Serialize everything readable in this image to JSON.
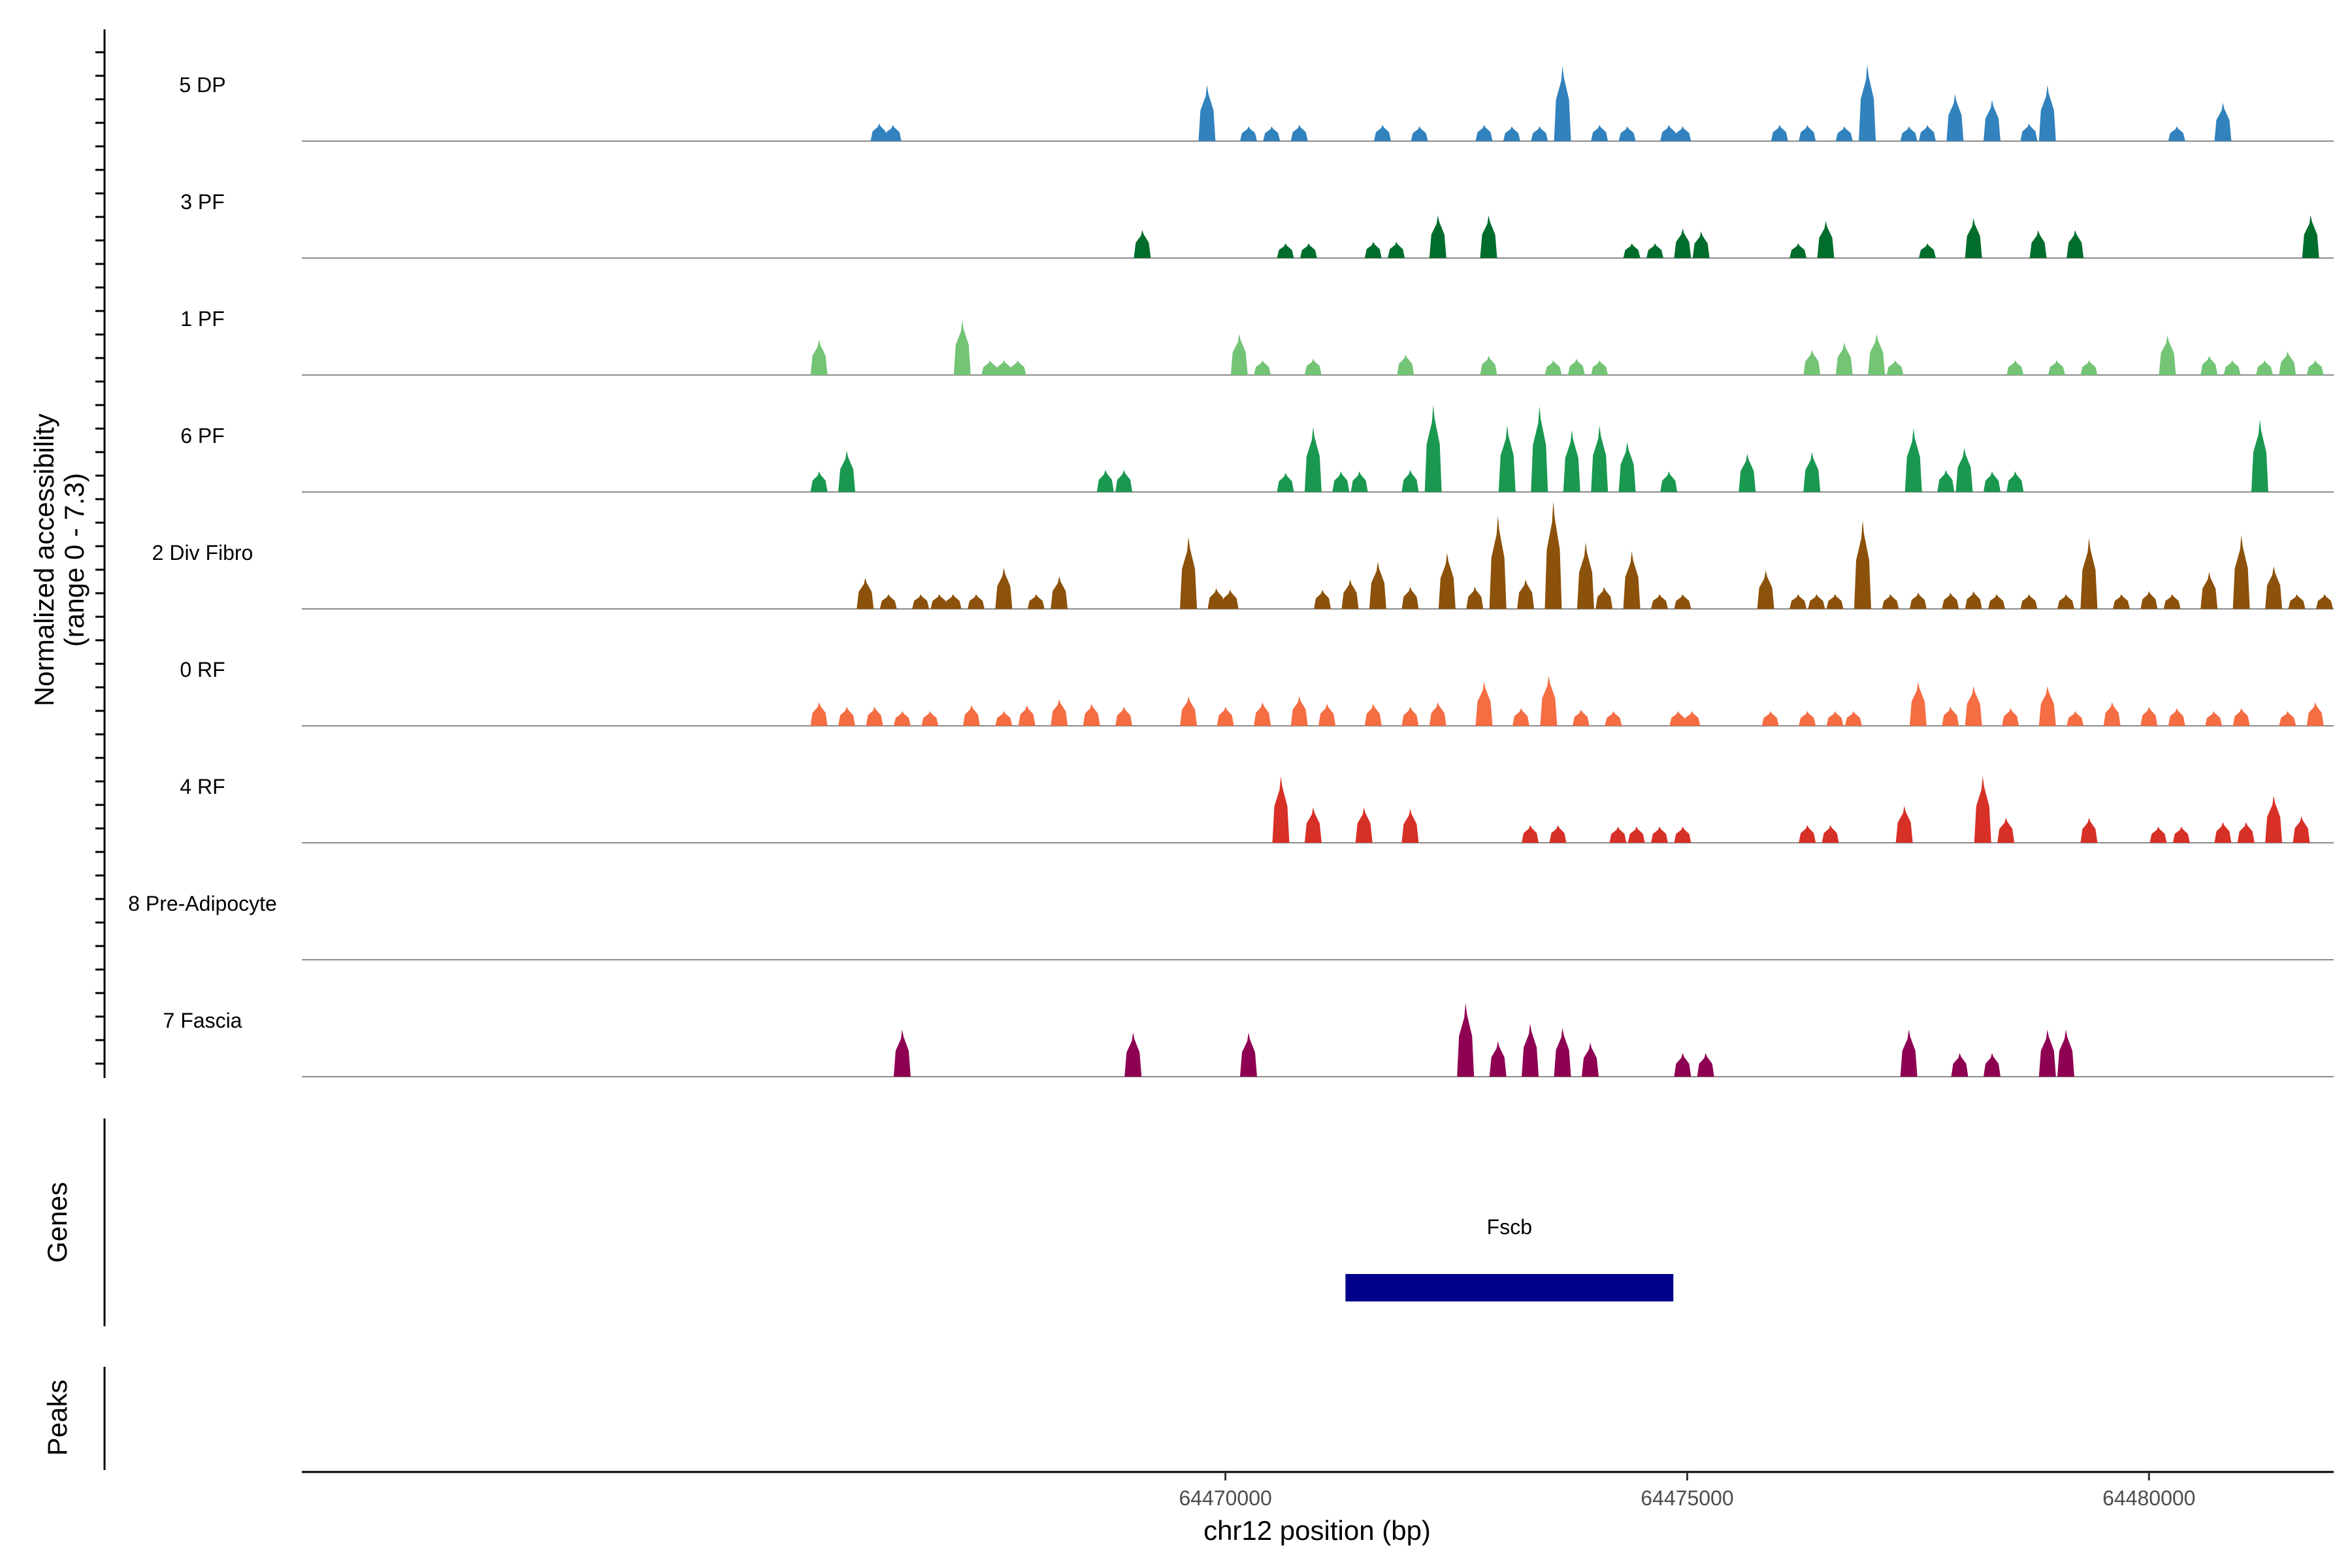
{
  "chart_data": {
    "type": "area",
    "title": "",
    "chromosome": "chr12",
    "xlabel": "chr12 position (bp)",
    "ylabel_line1": "Normalized accessibility",
    "ylabel_line2": "(range 0 - 7.3)",
    "y_range": [
      0,
      7.3
    ],
    "xlim": [
      64460000,
      64482000
    ],
    "x_ticks": [
      {
        "value": 64470000,
        "label": "64470000"
      },
      {
        "value": 64475000,
        "label": "64475000"
      },
      {
        "value": 64480000,
        "label": "64480000"
      }
    ],
    "tracks": [
      {
        "name": "5 DP",
        "color": "#3182bd",
        "peaks": [
          [
            64466250,
            1.2
          ],
          [
            64466400,
            1.1
          ],
          [
            64469800,
            3.8
          ],
          [
            64470250,
            1.0
          ],
          [
            64470500,
            1.0
          ],
          [
            64470800,
            1.1
          ],
          [
            64471700,
            1.1
          ],
          [
            64472100,
            1.0
          ],
          [
            64472800,
            1.1
          ],
          [
            64473100,
            1.0
          ],
          [
            64473400,
            1.0
          ],
          [
            64473650,
            5.1
          ],
          [
            64474050,
            1.1
          ],
          [
            64474350,
            1.0
          ],
          [
            64474800,
            1.1
          ],
          [
            64474950,
            1.0
          ],
          [
            64476000,
            1.1
          ],
          [
            64476300,
            1.1
          ],
          [
            64476700,
            1.0
          ],
          [
            64476950,
            5.2
          ],
          [
            64477400,
            1.0
          ],
          [
            64477600,
            1.1
          ],
          [
            64477900,
            3.2
          ],
          [
            64478300,
            2.8
          ],
          [
            64478700,
            1.2
          ],
          [
            64478900,
            3.8
          ],
          [
            64480300,
            1.0
          ],
          [
            64480800,
            2.6
          ]
        ]
      },
      {
        "name": "3 PF",
        "color": "#006d2c",
        "peaks": [
          [
            64469100,
            1.9
          ],
          [
            64470650,
            1.0
          ],
          [
            64470900,
            1.0
          ],
          [
            64471600,
            1.1
          ],
          [
            64471850,
            1.1
          ],
          [
            64472300,
            2.9
          ],
          [
            64472850,
            2.9
          ],
          [
            64474400,
            1.0
          ],
          [
            64474650,
            1.0
          ],
          [
            64474950,
            2.0
          ],
          [
            64475150,
            1.8
          ],
          [
            64476200,
            1.0
          ],
          [
            64476500,
            2.5
          ],
          [
            64477600,
            1.0
          ],
          [
            64478100,
            2.7
          ],
          [
            64478800,
            1.9
          ],
          [
            64479200,
            1.9
          ],
          [
            64481750,
            2.9
          ]
        ]
      },
      {
        "name": "1 PF",
        "color": "#74c476",
        "peaks": [
          [
            64465600,
            2.4
          ],
          [
            64467150,
            3.7
          ],
          [
            64467450,
            1.0
          ],
          [
            64467600,
            1.0
          ],
          [
            64467750,
            1.0
          ],
          [
            64470150,
            2.8
          ],
          [
            64470400,
            1.0
          ],
          [
            64470950,
            1.1
          ],
          [
            64471950,
            1.4
          ],
          [
            64472850,
            1.3
          ],
          [
            64473550,
            1.0
          ],
          [
            64473800,
            1.1
          ],
          [
            64474050,
            1.0
          ],
          [
            64476350,
            1.7
          ],
          [
            64476700,
            2.2
          ],
          [
            64477050,
            2.8
          ],
          [
            64477250,
            1.0
          ],
          [
            64478550,
            1.0
          ],
          [
            64479000,
            1.0
          ],
          [
            64479350,
            1.0
          ],
          [
            64480200,
            2.7
          ],
          [
            64480650,
            1.3
          ],
          [
            64480900,
            1.0
          ],
          [
            64481250,
            1.0
          ],
          [
            64481500,
            1.6
          ],
          [
            64481800,
            1.0
          ]
        ]
      },
      {
        "name": "6 PF",
        "color": "#1a9850",
        "peaks": [
          [
            64465600,
            1.4
          ],
          [
            64465900,
            2.8
          ],
          [
            64468700,
            1.5
          ],
          [
            64468900,
            1.5
          ],
          [
            64470650,
            1.3
          ],
          [
            64470950,
            4.4
          ],
          [
            64471250,
            1.4
          ],
          [
            64471450,
            1.4
          ],
          [
            64472000,
            1.5
          ],
          [
            64472250,
            5.9
          ],
          [
            64473050,
            4.5
          ],
          [
            64473400,
            5.8
          ],
          [
            64473750,
            4.2
          ],
          [
            64474050,
            4.5
          ],
          [
            64474350,
            3.4
          ],
          [
            64474800,
            1.4
          ],
          [
            64475650,
            2.6
          ],
          [
            64476350,
            2.7
          ],
          [
            64477450,
            4.3
          ],
          [
            64477800,
            1.5
          ],
          [
            64478000,
            3.0
          ],
          [
            64478300,
            1.4
          ],
          [
            64478550,
            1.4
          ],
          [
            64481200,
            4.9
          ]
        ]
      },
      {
        "name": "2 Div Fibro",
        "color": "#8c510a",
        "peaks": [
          [
            64466100,
            2.1
          ],
          [
            64466350,
            1.0
          ],
          [
            64466700,
            1.0
          ],
          [
            64466900,
            1.0
          ],
          [
            64467050,
            1.0
          ],
          [
            64467300,
            1.0
          ],
          [
            64467600,
            2.8
          ],
          [
            64467950,
            1.0
          ],
          [
            64468200,
            2.2
          ],
          [
            64469600,
            4.9
          ],
          [
            64469900,
            1.4
          ],
          [
            64470050,
            1.3
          ],
          [
            64471050,
            1.3
          ],
          [
            64471350,
            2.0
          ],
          [
            64471650,
            3.2
          ],
          [
            64472000,
            1.5
          ],
          [
            64472400,
            3.8
          ],
          [
            64472700,
            1.5
          ],
          [
            64472950,
            6.3
          ],
          [
            64473250,
            2.0
          ],
          [
            64473550,
            7.3
          ],
          [
            64473900,
            4.5
          ],
          [
            64474100,
            1.5
          ],
          [
            64474400,
            3.9
          ],
          [
            64474700,
            1.0
          ],
          [
            64474950,
            1.0
          ],
          [
            64475850,
            2.6
          ],
          [
            64476200,
            1.0
          ],
          [
            64476400,
            1.0
          ],
          [
            64476600,
            1.0
          ],
          [
            64476900,
            6.0
          ],
          [
            64477200,
            1.0
          ],
          [
            64477500,
            1.1
          ],
          [
            64477850,
            1.1
          ],
          [
            64478100,
            1.2
          ],
          [
            64478350,
            1.0
          ],
          [
            64478700,
            1.0
          ],
          [
            64479100,
            1.0
          ],
          [
            64479350,
            4.8
          ],
          [
            64479700,
            1.0
          ],
          [
            64480000,
            1.2
          ],
          [
            64480250,
            1.0
          ],
          [
            64480650,
            2.5
          ],
          [
            64481000,
            5.0
          ],
          [
            64481350,
            2.9
          ],
          [
            64481600,
            1.0
          ],
          [
            64481900,
            1.0
          ]
        ]
      },
      {
        "name": "0 RF",
        "color": "#f46d43",
        "peaks": [
          [
            64465600,
            1.6
          ],
          [
            64465900,
            1.3
          ],
          [
            64466200,
            1.3
          ],
          [
            64466500,
            1.0
          ],
          [
            64466800,
            1.0
          ],
          [
            64467250,
            1.4
          ],
          [
            64467600,
            1.0
          ],
          [
            64467850,
            1.4
          ],
          [
            64468200,
            1.8
          ],
          [
            64468550,
            1.5
          ],
          [
            64468900,
            1.3
          ],
          [
            64469600,
            2.0
          ],
          [
            64470000,
            1.3
          ],
          [
            64470400,
            1.6
          ],
          [
            64470800,
            2.0
          ],
          [
            64471100,
            1.5
          ],
          [
            64471600,
            1.5
          ],
          [
            64472000,
            1.3
          ],
          [
            64472300,
            1.6
          ],
          [
            64472800,
            3.0
          ],
          [
            64473200,
            1.2
          ],
          [
            64473500,
            3.4
          ],
          [
            64473850,
            1.1
          ],
          [
            64474200,
            1.0
          ],
          [
            64474900,
            1.0
          ],
          [
            64475050,
            1.0
          ],
          [
            64475900,
            1.0
          ],
          [
            64476300,
            1.0
          ],
          [
            64476600,
            1.0
          ],
          [
            64476800,
            1.0
          ],
          [
            64477500,
            3.0
          ],
          [
            64477850,
            1.3
          ],
          [
            64478100,
            2.7
          ],
          [
            64478500,
            1.2
          ],
          [
            64478900,
            2.7
          ],
          [
            64479200,
            1.0
          ],
          [
            64479600,
            1.6
          ],
          [
            64480000,
            1.3
          ],
          [
            64480300,
            1.2
          ],
          [
            64480700,
            1.0
          ],
          [
            64481000,
            1.2
          ],
          [
            64481500,
            1.0
          ],
          [
            64481800,
            1.6
          ]
        ]
      },
      {
        "name": "4 RF",
        "color": "#d73027",
        "peaks": [
          [
            64470600,
            4.5
          ],
          [
            64470950,
            2.4
          ],
          [
            64471500,
            2.4
          ],
          [
            64472000,
            2.3
          ],
          [
            64473300,
            1.2
          ],
          [
            64473600,
            1.2
          ],
          [
            64474250,
            1.1
          ],
          [
            64474450,
            1.1
          ],
          [
            64474700,
            1.1
          ],
          [
            64474950,
            1.1
          ],
          [
            64476300,
            1.2
          ],
          [
            64476550,
            1.2
          ],
          [
            64477350,
            2.5
          ],
          [
            64478200,
            4.5
          ],
          [
            64478450,
            1.7
          ],
          [
            64479350,
            1.7
          ],
          [
            64480100,
            1.1
          ],
          [
            64480350,
            1.1
          ],
          [
            64480800,
            1.4
          ],
          [
            64481050,
            1.4
          ],
          [
            64481350,
            3.2
          ],
          [
            64481650,
            1.8
          ]
        ]
      },
      {
        "name": "8 Pre-Adipocyte",
        "color": "#762a83",
        "peaks": []
      },
      {
        "name": "7 Fascia",
        "color": "#8e0152",
        "peaks": [
          [
            64466500,
            3.2
          ],
          [
            64469000,
            3.0
          ],
          [
            64470250,
            3.0
          ],
          [
            64472600,
            5.0
          ],
          [
            64472950,
            2.4
          ],
          [
            64473300,
            3.6
          ],
          [
            64473650,
            3.3
          ],
          [
            64473950,
            2.3
          ],
          [
            64474950,
            1.6
          ],
          [
            64475200,
            1.6
          ],
          [
            64477400,
            3.2
          ],
          [
            64477950,
            1.6
          ],
          [
            64478300,
            1.6
          ],
          [
            64478900,
            3.2
          ],
          [
            64479100,
            3.2
          ]
        ]
      }
    ],
    "genes_label": "Genes",
    "peaks_label": "Peaks",
    "genes": [
      {
        "name": "Fscb",
        "start": 64471300,
        "end": 64474850,
        "color": "#00008b"
      }
    ]
  }
}
